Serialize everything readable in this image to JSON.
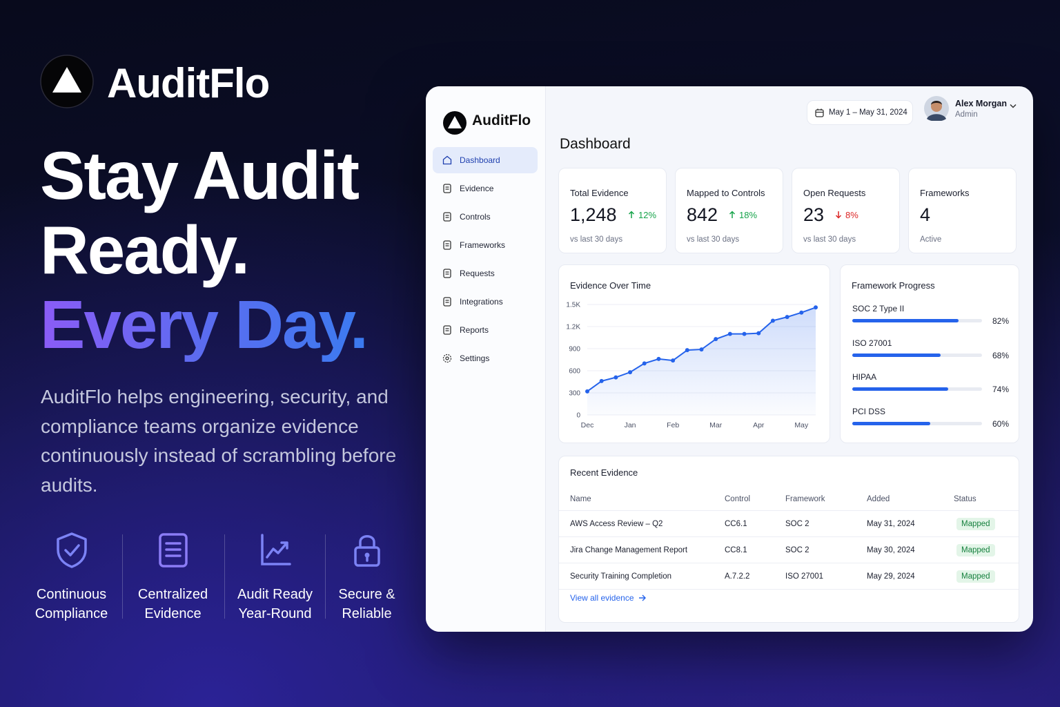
{
  "brand": {
    "name": "AuditFlo"
  },
  "hero": {
    "title_lines": [
      "Stay Audit",
      "Ready."
    ],
    "highlight": "Every Day.",
    "description": "AuditFlo helps engineering, security, and compliance teams organize evidence continuously instead of scrambling before audits."
  },
  "features": [
    {
      "label": "Continuous Compliance"
    },
    {
      "label": "Centralized Evidence"
    },
    {
      "label": "Audit Ready Year-Round"
    },
    {
      "label": "Secure & Reliable"
    }
  ],
  "dashboard": {
    "brand": "AuditFlo",
    "nav": [
      {
        "label": "Dashboard",
        "active": true
      },
      {
        "label": "Evidence"
      },
      {
        "label": "Controls"
      },
      {
        "label": "Frameworks"
      },
      {
        "label": "Requests"
      },
      {
        "label": "Integrations"
      },
      {
        "label": "Reports"
      },
      {
        "label": "Settings"
      }
    ],
    "date_range": "May 1 – May 31, 2024",
    "user": {
      "name": "Alex Morgan",
      "role": "Admin"
    },
    "page_title": "Dashboard",
    "stats": [
      {
        "label": "Total Evidence",
        "value": "1,248",
        "change": "12%",
        "direction": "up",
        "note": "vs last 30 days"
      },
      {
        "label": "Mapped to Controls",
        "value": "842",
        "change": "18%",
        "direction": "up",
        "note": "vs last 30 days"
      },
      {
        "label": "Open Requests",
        "value": "23",
        "change": "8%",
        "direction": "down",
        "note": "vs last 30 days"
      },
      {
        "label": "Frameworks",
        "value": "4",
        "note": "Active"
      }
    ],
    "evidence_chart": {
      "type": "line",
      "title": "Evidence Over Time",
      "categories": [
        "Dec",
        null,
        null,
        "Jan",
        null,
        null,
        "Feb",
        null,
        null,
        "Mar",
        null,
        null,
        "Apr",
        null,
        null,
        "May",
        null
      ],
      "values": [
        320,
        460,
        510,
        580,
        700,
        760,
        740,
        880,
        890,
        1030,
        1100,
        1100,
        1110,
        1280,
        1330,
        1390,
        1460
      ],
      "color": "#2563eb",
      "ylim": [
        0,
        1500
      ],
      "yticks": [
        0,
        300,
        600,
        900,
        {
          "value": 1200,
          "label": "1.2K"
        },
        {
          "value": 1500,
          "label": "1.5K"
        }
      ],
      "grid": true
    },
    "framework_progress": {
      "type": "bar",
      "orientation": "horizontal",
      "title": "Framework Progress",
      "categories": [
        "SOC 2 Type II",
        "ISO 27001",
        "HIPAA",
        "PCI DSS"
      ],
      "values": [
        82,
        68,
        74,
        60
      ],
      "value_labels": [
        "82%",
        "68%",
        "74%",
        "60%"
      ],
      "xlim": [
        0,
        100
      ],
      "color": "#2563eb"
    },
    "recent_evidence": {
      "title": "Recent Evidence",
      "columns": [
        "Name",
        "Control",
        "Framework",
        "Added",
        "Status"
      ],
      "rows": [
        [
          "AWS Access Review – Q2",
          "CC6.1",
          "SOC 2",
          "May 31, 2024",
          "Mapped"
        ],
        [
          "Jira Change Management Report",
          "CC8.1",
          "SOC 2",
          "May 30, 2024",
          "Mapped"
        ],
        [
          "Security Training Completion",
          "A.7.2.2",
          "ISO 27001",
          "May 29, 2024",
          "Mapped"
        ]
      ],
      "link": "View all evidence"
    }
  }
}
